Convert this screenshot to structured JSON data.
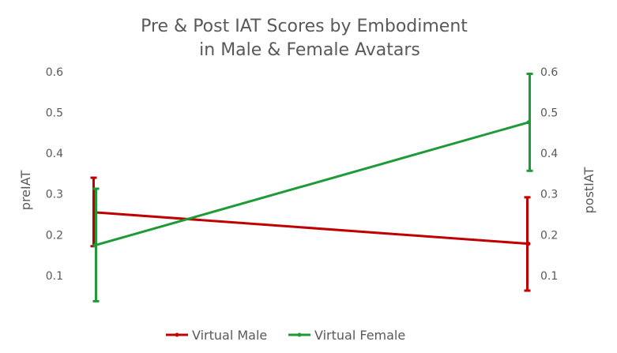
{
  "chart_data": {
    "type": "line",
    "title_line1": "Pre & Post IAT Scores by Embodiment",
    "title_line2": "in Male & Female Avatars",
    "ylabel_left": "preIAT",
    "ylabel_right": "postIAT",
    "ylim": [
      0,
      0.6
    ],
    "yticks": [
      "0.1",
      "0.2",
      "0.3",
      "0.4",
      "0.5",
      "0.6"
    ],
    "yticks_values": [
      0.1,
      0.2,
      0.3,
      0.4,
      0.5,
      0.6
    ],
    "grid": false,
    "legend_position": "bottom",
    "series": [
      {
        "name": "Virtual Male",
        "color": "#c00000",
        "values": [
          0.255,
          0.178
        ],
        "error_low": [
          0.172,
          0.063
        ],
        "error_high": [
          0.34,
          0.292
        ]
      },
      {
        "name": "Virtual Female",
        "color": "#1e9a36",
        "values": [
          0.174,
          0.476
        ],
        "error_low": [
          0.037,
          0.357
        ],
        "error_high": [
          0.313,
          0.595
        ]
      }
    ]
  }
}
